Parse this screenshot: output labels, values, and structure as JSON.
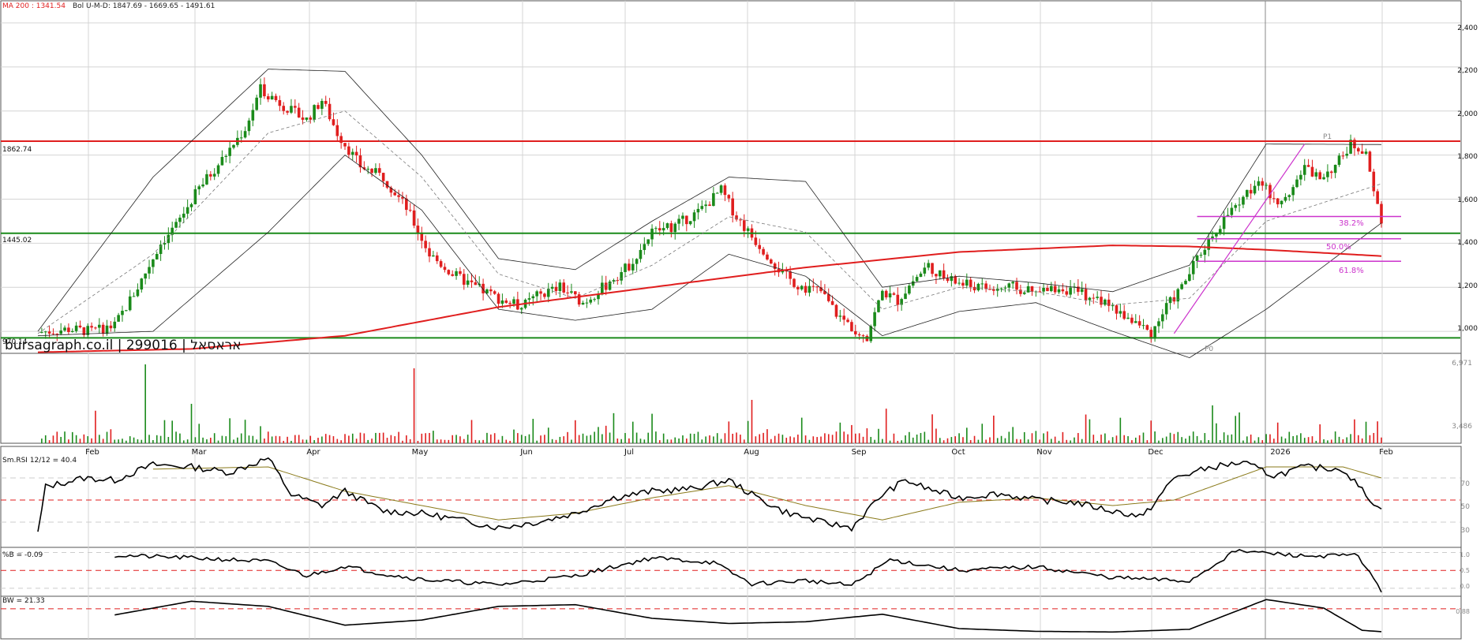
{
  "header": {
    "ma_label": "MA 200 : 1341.54",
    "boll_label": "Bol U-M-D: 1847.69 - 1669.65 - 1491.61"
  },
  "price_panel": {
    "y_ticks": [
      "2,400",
      "2,200",
      "2,000",
      "1,800",
      "1,600",
      "1,400",
      "1,200",
      "1,000"
    ],
    "level_labels": [
      "1862.74",
      "1445.02",
      "970.14"
    ],
    "watermark": "bursagraph.co.il | 299016 | אראסאל",
    "fib_labels": [
      "38.2%",
      "50.0%",
      "61.8%"
    ],
    "fib_points": [
      "P1",
      "P0"
    ]
  },
  "volume_panel": {
    "y_ticks": [
      "6,971",
      "3,486"
    ]
  },
  "x_axis": {
    "months": [
      "Feb",
      "Mar",
      "Apr",
      "May",
      "Jun",
      "Jul",
      "Aug",
      "Sep",
      "Oct",
      "Nov",
      "Dec",
      "2026",
      "Feb"
    ]
  },
  "rsi_panel": {
    "label": "Sm.RSI 12/12 = 40.4",
    "y_ticks": [
      "70",
      "50",
      "30"
    ]
  },
  "pb_panel": {
    "label": "%B = -0.09",
    "y_ticks": [
      "1.0",
      "0.5",
      "0.0"
    ]
  },
  "bw_panel": {
    "label": "BW = 21.33",
    "y_ticks": [
      "0.88"
    ]
  },
  "colors": {
    "up": "#1a8a1a",
    "down": "#e01e1e",
    "ma200": "#e01e1e",
    "fib": "#cc33cc",
    "support": "#1a8a1a",
    "resistance": "#e01e1e",
    "band": "#222222",
    "signal": "#8a7a1a"
  },
  "chart_data": [
    {
      "type": "line",
      "name_hint": "price",
      "x": [
        "Feb",
        "Mar",
        "Apr",
        "May",
        "Jun",
        "Jul",
        "Aug",
        "Sep",
        "Oct",
        "Nov",
        "Dec",
        "2026",
        "Feb"
      ],
      "close_path": [
        [
          0,
          995
        ],
        [
          8,
          1010
        ],
        [
          14,
          1000
        ],
        [
          20,
          1025
        ],
        [
          26,
          1200
        ],
        [
          32,
          1400
        ],
        [
          36,
          1480
        ],
        [
          42,
          1650
        ],
        [
          48,
          1780
        ],
        [
          54,
          1920
        ],
        [
          58,
          2100
        ],
        [
          62,
          2050
        ],
        [
          66,
          2000
        ],
        [
          70,
          1960
        ],
        [
          74,
          2050
        ],
        [
          78,
          1900
        ],
        [
          84,
          1750
        ],
        [
          90,
          1700
        ],
        [
          96,
          1560
        ],
        [
          102,
          1350
        ],
        [
          108,
          1260
        ],
        [
          114,
          1200
        ],
        [
          120,
          1150
        ],
        [
          126,
          1110
        ],
        [
          130,
          1160
        ],
        [
          136,
          1200
        ],
        [
          142,
          1130
        ],
        [
          148,
          1210
        ],
        [
          154,
          1300
        ],
        [
          160,
          1450
        ],
        [
          166,
          1480
        ],
        [
          172,
          1540
        ],
        [
          178,
          1640
        ],
        [
          182,
          1520
        ],
        [
          186,
          1430
        ],
        [
          190,
          1350
        ],
        [
          194,
          1260
        ],
        [
          198,
          1210
        ],
        [
          204,
          1180
        ],
        [
          208,
          1080
        ],
        [
          212,
          1020
        ],
        [
          216,
          980
        ],
        [
          220,
          1180
        ],
        [
          224,
          1140
        ],
        [
          228,
          1230
        ],
        [
          232,
          1300
        ],
        [
          236,
          1240
        ],
        [
          242,
          1210
        ],
        [
          248,
          1190
        ],
        [
          254,
          1200
        ],
        [
          260,
          1170
        ],
        [
          266,
          1200
        ],
        [
          272,
          1170
        ],
        [
          278,
          1130
        ],
        [
          282,
          1080
        ],
        [
          286,
          1040
        ],
        [
          290,
          990
        ],
        [
          294,
          1110
        ],
        [
          298,
          1200
        ],
        [
          302,
          1330
        ],
        [
          306,
          1440
        ],
        [
          310,
          1530
        ],
        [
          314,
          1600
        ],
        [
          318,
          1700
        ],
        [
          322,
          1580
        ],
        [
          326,
          1640
        ],
        [
          330,
          1740
        ],
        [
          334,
          1700
        ],
        [
          338,
          1750
        ],
        [
          342,
          1850
        ],
        [
          346,
          1820
        ],
        [
          350,
          1480
        ]
      ],
      "ma200": [
        [
          0,
          905
        ],
        [
          40,
          920
        ],
        [
          80,
          980
        ],
        [
          120,
          1110
        ],
        [
          160,
          1200
        ],
        [
          200,
          1290
        ],
        [
          240,
          1360
        ],
        [
          280,
          1390
        ],
        [
          300,
          1385
        ],
        [
          320,
          1370
        ],
        [
          350,
          1341.54
        ]
      ],
      "bollinger_upper": [
        [
          0,
          1000
        ],
        [
          30,
          1700
        ],
        [
          60,
          2190
        ],
        [
          80,
          2180
        ],
        [
          100,
          1800
        ],
        [
          120,
          1330
        ],
        [
          140,
          1280
        ],
        [
          160,
          1500
        ],
        [
          180,
          1700
        ],
        [
          200,
          1680
        ],
        [
          220,
          1200
        ],
        [
          240,
          1250
        ],
        [
          260,
          1220
        ],
        [
          280,
          1180
        ],
        [
          300,
          1300
        ],
        [
          320,
          1850
        ],
        [
          350,
          1847.69
        ]
      ],
      "bollinger_middle": [
        [
          0,
          990
        ],
        [
          30,
          1350
        ],
        [
          60,
          1900
        ],
        [
          80,
          2000
        ],
        [
          100,
          1700
        ],
        [
          120,
          1260
        ],
        [
          140,
          1150
        ],
        [
          160,
          1300
        ],
        [
          180,
          1520
        ],
        [
          200,
          1450
        ],
        [
          220,
          1100
        ],
        [
          240,
          1200
        ],
        [
          260,
          1180
        ],
        [
          280,
          1120
        ],
        [
          300,
          1150
        ],
        [
          320,
          1500
        ],
        [
          350,
          1669.65
        ]
      ],
      "bollinger_lower": [
        [
          0,
          980
        ],
        [
          30,
          1000
        ],
        [
          60,
          1450
        ],
        [
          80,
          1800
        ],
        [
          100,
          1550
        ],
        [
          120,
          1100
        ],
        [
          140,
          1050
        ],
        [
          160,
          1100
        ],
        [
          180,
          1350
        ],
        [
          200,
          1250
        ],
        [
          220,
          980
        ],
        [
          240,
          1090
        ],
        [
          260,
          1130
        ],
        [
          280,
          1000
        ],
        [
          300,
          880
        ],
        [
          320,
          1100
        ],
        [
          350,
          1491.61
        ]
      ],
      "levels": [
        1862.74,
        1445.02,
        970.14
      ],
      "fibonacci": {
        "P0": 990,
        "P1": 1850,
        "ratios": [
          38.2,
          50.0,
          61.8
        ],
        "levels": [
          1521,
          1420,
          1318
        ]
      },
      "ylim": [
        900,
        2450
      ]
    },
    {
      "type": "bar",
      "name_hint": "volume",
      "ylim": [
        0,
        6971
      ],
      "ticks": [
        6971,
        3486
      ]
    },
    {
      "type": "line",
      "name_hint": "rsi",
      "ylim": [
        10,
        90
      ],
      "ticks": [
        70,
        50,
        30
      ],
      "values": [
        [
          0,
          20
        ],
        [
          2,
          62
        ],
        [
          12,
          70
        ],
        [
          20,
          68
        ],
        [
          30,
          82
        ],
        [
          40,
          80
        ],
        [
          50,
          75
        ],
        [
          60,
          88
        ],
        [
          66,
          55
        ],
        [
          74,
          45
        ],
        [
          80,
          58
        ],
        [
          90,
          40
        ],
        [
          100,
          38
        ],
        [
          110,
          32
        ],
        [
          120,
          25
        ],
        [
          130,
          30
        ],
        [
          140,
          38
        ],
        [
          150,
          52
        ],
        [
          160,
          58
        ],
        [
          170,
          60
        ],
        [
          180,
          68
        ],
        [
          186,
          55
        ],
        [
          194,
          40
        ],
        [
          204,
          30
        ],
        [
          212,
          25
        ],
        [
          220,
          55
        ],
        [
          226,
          68
        ],
        [
          232,
          60
        ],
        [
          240,
          52
        ],
        [
          250,
          56
        ],
        [
          260,
          50
        ],
        [
          270,
          48
        ],
        [
          280,
          40
        ],
        [
          288,
          35
        ],
        [
          296,
          70
        ],
        [
          306,
          80
        ],
        [
          314,
          84
        ],
        [
          322,
          72
        ],
        [
          330,
          80
        ],
        [
          340,
          78
        ],
        [
          346,
          55
        ],
        [
          350,
          40.4
        ]
      ],
      "signal": [
        [
          0,
          70
        ],
        [
          30,
          78
        ],
        [
          60,
          80
        ],
        [
          80,
          58
        ],
        [
          100,
          45
        ],
        [
          120,
          32
        ],
        [
          140,
          38
        ],
        [
          160,
          52
        ],
        [
          180,
          63
        ],
        [
          200,
          45
        ],
        [
          220,
          32
        ],
        [
          240,
          48
        ],
        [
          260,
          52
        ],
        [
          280,
          45
        ],
        [
          296,
          50
        ],
        [
          320,
          80
        ],
        [
          340,
          80
        ],
        [
          350,
          70
        ]
      ]
    },
    {
      "type": "line",
      "name_hint": "percent_b",
      "ylim": [
        -0.2,
        1.1
      ],
      "ticks": [
        1.0,
        0.5,
        0.0
      ],
      "values": [
        [
          0,
          0.95
        ],
        [
          20,
          0.92
        ],
        [
          40,
          0.85
        ],
        [
          60,
          0.75
        ],
        [
          70,
          0.35
        ],
        [
          80,
          0.62
        ],
        [
          90,
          0.4
        ],
        [
          100,
          0.25
        ],
        [
          120,
          0.1
        ],
        [
          140,
          0.35
        ],
        [
          160,
          0.85
        ],
        [
          176,
          0.72
        ],
        [
          186,
          0.12
        ],
        [
          200,
          0.22
        ],
        [
          212,
          0.08
        ],
        [
          222,
          0.8
        ],
        [
          240,
          0.5
        ],
        [
          260,
          0.6
        ],
        [
          280,
          0.3
        ],
        [
          300,
          0.2
        ],
        [
          312,
          1.05
        ],
        [
          330,
          0.9
        ],
        [
          344,
          0.92
        ],
        [
          350,
          -0.09
        ]
      ]
    },
    {
      "type": "line",
      "name_hint": "bandwidth",
      "ylim": [
        0,
        1.2
      ],
      "ticks": [
        0.88
      ],
      "values": [
        [
          0,
          0.3
        ],
        [
          40,
          1.1
        ],
        [
          60,
          0.95
        ],
        [
          80,
          0.4
        ],
        [
          100,
          0.55
        ],
        [
          120,
          0.95
        ],
        [
          140,
          1.0
        ],
        [
          160,
          0.6
        ],
        [
          180,
          0.45
        ],
        [
          200,
          0.5
        ],
        [
          220,
          0.72
        ],
        [
          240,
          0.3
        ],
        [
          260,
          0.22
        ],
        [
          280,
          0.2
        ],
        [
          300,
          0.28
        ],
        [
          320,
          1.15
        ],
        [
          335,
          0.9
        ],
        [
          345,
          0.25
        ],
        [
          350,
          0.21
        ]
      ]
    }
  ]
}
